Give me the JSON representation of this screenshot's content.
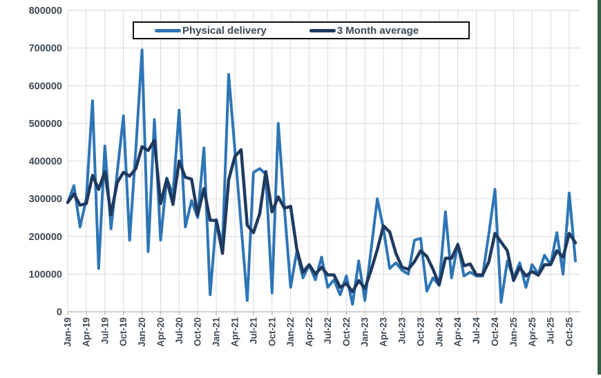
{
  "page": {
    "background_color": "#ffffff",
    "right_border_color": "#335f47"
  },
  "legend": {
    "position": "top-center",
    "items": [
      {
        "label": "Physical delivery",
        "color": "#2e75b6"
      },
      {
        "label": "3 Month average",
        "color": "#1f3a5f"
      }
    ]
  },
  "axes": {
    "grid_color": "#d9d9d9",
    "axis_line_color": "#bfbfbf",
    "tick_label_color": "#3e4a55",
    "y_tick_labels": [
      "0",
      "100000",
      "200000",
      "300000",
      "400000",
      "500000",
      "600000",
      "700000",
      "800000"
    ],
    "x_tick_labels": [
      "Jan-19",
      "Apr-19",
      "Jul-19",
      "Oct-19",
      "Jan-20",
      "Apr-20",
      "Jul-20",
      "Oct-20",
      "Jan-21",
      "Apr-21",
      "Jul-21",
      "Oct-21",
      "Jan-22",
      "Apr-22",
      "Jul-22",
      "Oct-22",
      "Jan-23",
      "Apr-23",
      "Jul-23",
      "Oct-23",
      "Jan-24",
      "Apr-24",
      "Jul-24",
      "Oct-24",
      "Jan-25",
      "Apr-25",
      "Jul-25",
      "Oct-25"
    ]
  },
  "chart_data": {
    "type": "line",
    "title": "",
    "xlabel": "",
    "ylabel": "",
    "ylim": [
      0,
      800000
    ],
    "ytick_interval": 100000,
    "grid": true,
    "legend_position": "top-center",
    "x": [
      "Jan-19",
      "Feb-19",
      "Mar-19",
      "Apr-19",
      "May-19",
      "Jun-19",
      "Jul-19",
      "Aug-19",
      "Sep-19",
      "Oct-19",
      "Nov-19",
      "Dec-19",
      "Jan-20",
      "Feb-20",
      "Mar-20",
      "Apr-20",
      "May-20",
      "Jun-20",
      "Jul-20",
      "Aug-20",
      "Sep-20",
      "Oct-20",
      "Nov-20",
      "Dec-20",
      "Jan-21",
      "Feb-21",
      "Mar-21",
      "Apr-21",
      "May-21",
      "Jun-21",
      "Jul-21",
      "Aug-21",
      "Sep-21",
      "Oct-21",
      "Nov-21",
      "Dec-21",
      "Jan-22",
      "Feb-22",
      "Mar-22",
      "Apr-22",
      "May-22",
      "Jun-22",
      "Jul-22",
      "Aug-22",
      "Sep-22",
      "Oct-22",
      "Nov-22",
      "Dec-22",
      "Jan-23",
      "Feb-23",
      "Mar-23",
      "Apr-23",
      "May-23",
      "Jun-23",
      "Jul-23",
      "Aug-23",
      "Sep-23",
      "Oct-23",
      "Nov-23",
      "Dec-23",
      "Jan-24",
      "Feb-24",
      "Mar-24",
      "Apr-24",
      "May-24",
      "Jun-24",
      "Jul-24",
      "Aug-24",
      "Sep-24",
      "Oct-24",
      "Nov-24",
      "Dec-24",
      "Jan-25",
      "Feb-25",
      "Mar-25",
      "Apr-25",
      "May-25",
      "Jun-25",
      "Jul-25",
      "Aug-25",
      "Sep-25",
      "Oct-25",
      "Nov-25"
    ],
    "series": [
      {
        "name": "Physical delivery",
        "color": "#2e75b6",
        "stroke_width": 4,
        "values": [
          290000,
          335000,
          225000,
          300000,
          560000,
          115000,
          440000,
          220000,
          370000,
          520000,
          190000,
          430000,
          695000,
          160000,
          510000,
          190000,
          355000,
          310000,
          535000,
          225000,
          295000,
          250000,
          435000,
          45000,
          245000,
          175000,
          630000,
          430000,
          230000,
          30000,
          370000,
          380000,
          365000,
          50000,
          500000,
          275000,
          65000,
          160000,
          90000,
          125000,
          85000,
          145000,
          65000,
          85000,
          45000,
          95000,
          20000,
          135000,
          30000,
          165000,
          300000,
          220000,
          115000,
          130000,
          110000,
          100000,
          190000,
          195000,
          55000,
          90000,
          70000,
          265000,
          90000,
          180000,
          95000,
          105000,
          95000,
          95000,
          205000,
          325000,
          25000,
          135000,
          90000,
          130000,
          65000,
          125000,
          100000,
          150000,
          125000,
          210000,
          100000,
          315000,
          135000
        ]
      },
      {
        "name": "3 Month average",
        "color": "#1f3a5f",
        "stroke_width": 4.5,
        "note": "trailing 3-month average of Physical delivery",
        "values": [
          290000,
          313000,
          283000,
          287000,
          362000,
          325000,
          372000,
          258000,
          343000,
          370000,
          360000,
          380000,
          438000,
          428000,
          455000,
          287000,
          352000,
          285000,
          400000,
          357000,
          352000,
          257000,
          327000,
          243000,
          242000,
          155000,
          350000,
          412000,
          430000,
          230000,
          210000,
          260000,
          372000,
          265000,
          305000,
          275000,
          280000,
          167000,
          105000,
          125000,
          100000,
          118000,
          98000,
          98000,
          65000,
          75000,
          53000,
          83000,
          62000,
          110000,
          165000,
          228000,
          212000,
          155000,
          118000,
          113000,
          133000,
          162000,
          147000,
          113000,
          72000,
          142000,
          142000,
          178000,
          122000,
          127000,
          98000,
          98000,
          132000,
          208000,
          185000,
          162000,
          83000,
          118000,
          95000,
          107000,
          97000,
          125000,
          125000,
          162000,
          145000,
          208000,
          183000
        ]
      }
    ]
  }
}
